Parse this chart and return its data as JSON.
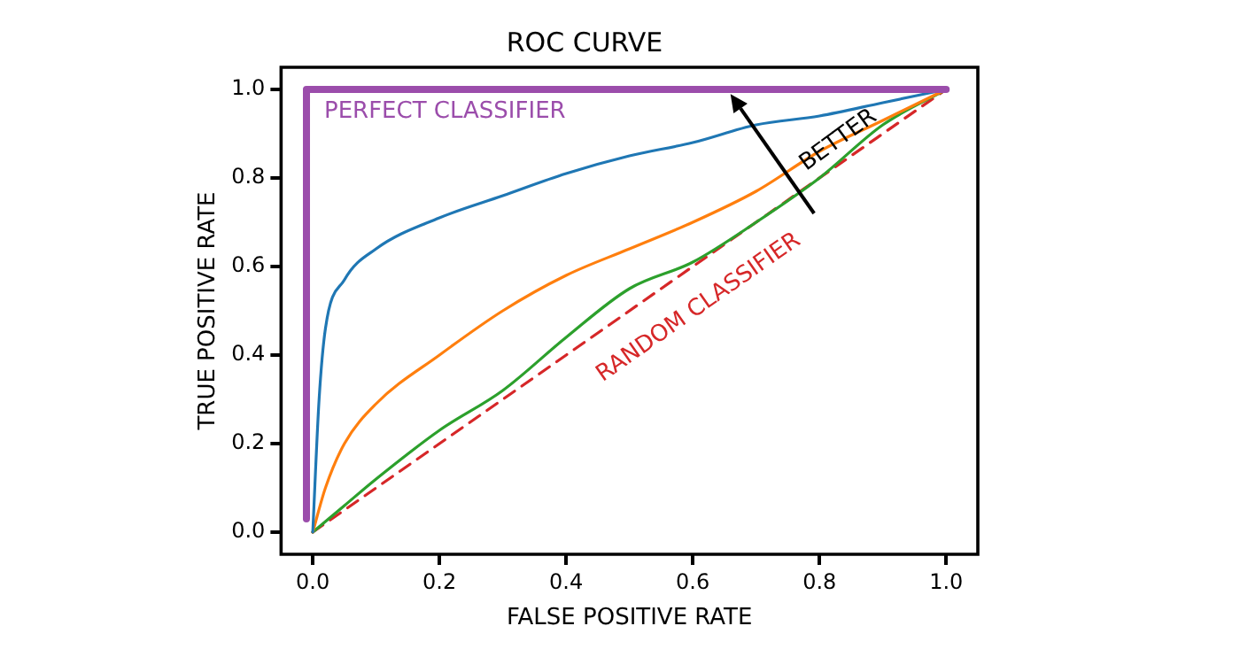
{
  "chart_data": {
    "type": "line",
    "title": "ROC CURVE",
    "xlabel": "FALSE POSITIVE RATE",
    "ylabel": "TRUE POSITIVE RATE",
    "xlim": [
      -0.05,
      1.05
    ],
    "ylim": [
      -0.05,
      1.05
    ],
    "xticks": [
      {
        "value": 0,
        "label": "0.0"
      },
      0.2,
      0.4,
      0.6,
      0.8,
      {
        "value": 1,
        "label": "1.0"
      }
    ],
    "yticks": [
      {
        "value": 0,
        "label": "0.0"
      },
      0.2,
      0.4,
      0.6,
      0.8,
      {
        "value": 1,
        "label": "1.0"
      }
    ],
    "grid": false,
    "legend": false,
    "marker": "none",
    "series": [
      {
        "name": "PERFECT CLASSIFIER",
        "color": "#9b4dab",
        "x": [
          -0.01,
          -0.01,
          1.0
        ],
        "values": [
          0.03,
          1.0,
          1.0
        ],
        "line_style": "solid"
      },
      {
        "color": "#1f77b4",
        "x": [
          0,
          0.01,
          0.02,
          0.05,
          0.1,
          0.2,
          0.3,
          0.4,
          0.5,
          0.6,
          0.7,
          0.8,
          0.9,
          1.0
        ],
        "values": [
          0,
          0.3,
          0.46,
          0.57,
          0.64,
          0.71,
          0.76,
          0.81,
          0.85,
          0.88,
          0.92,
          0.94,
          0.97,
          1.0
        ],
        "line_style": "solid"
      },
      {
        "color": "#ff7f0e",
        "x": [
          0,
          0.02,
          0.05,
          0.1,
          0.2,
          0.3,
          0.4,
          0.5,
          0.6,
          0.7,
          0.8,
          0.9,
          1.0
        ],
        "values": [
          0,
          0.1,
          0.2,
          0.29,
          0.4,
          0.5,
          0.58,
          0.64,
          0.7,
          0.77,
          0.86,
          0.93,
          1.0
        ],
        "line_style": "solid"
      },
      {
        "color": "#2ca02c",
        "x": [
          0,
          0.05,
          0.1,
          0.2,
          0.3,
          0.4,
          0.5,
          0.6,
          0.7,
          0.8,
          0.9,
          1.0
        ],
        "values": [
          0,
          0.06,
          0.12,
          0.23,
          0.32,
          0.44,
          0.55,
          0.61,
          0.7,
          0.8,
          0.92,
          1.0
        ],
        "line_style": "solid"
      },
      {
        "name": "RANDOM CLASSIFIER",
        "color": "#d62728",
        "x": [
          0,
          1.0
        ],
        "values": [
          0,
          1.0
        ],
        "line_style": "dashed"
      }
    ],
    "annotations": [
      "BETTER"
    ]
  }
}
